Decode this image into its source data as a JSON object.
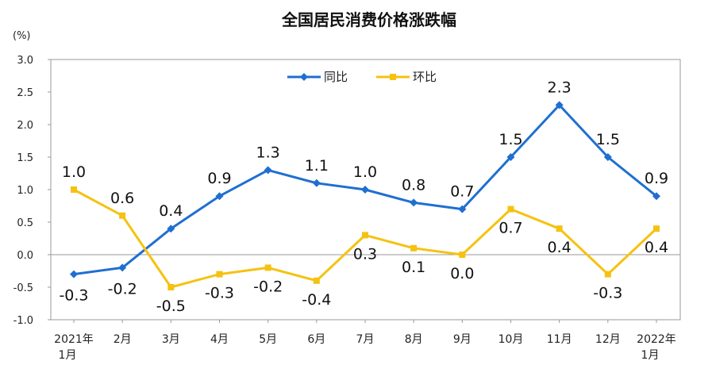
{
  "chart_data": {
    "type": "line",
    "title": "全国居民消费价格涨跌幅",
    "unit": "(%)",
    "categories": [
      [
        "2021年",
        "1月"
      ],
      [
        "2月"
      ],
      [
        "3月"
      ],
      [
        "4月"
      ],
      [
        "5月"
      ],
      [
        "6月"
      ],
      [
        "7月"
      ],
      [
        "8月"
      ],
      [
        "9月"
      ],
      [
        "10月"
      ],
      [
        "11月"
      ],
      [
        "12月"
      ],
      [
        "2022年",
        "1月"
      ]
    ],
    "series": [
      {
        "name": "同比",
        "color": "#1F6FD1",
        "values": [
          -0.3,
          -0.2,
          0.4,
          0.9,
          1.3,
          1.1,
          1.0,
          0.8,
          0.7,
          1.5,
          2.3,
          1.5,
          0.9
        ],
        "labels": [
          "-0.3",
          "-0.2",
          "0.4",
          "0.9",
          "1.3",
          "1.1",
          "1.0",
          "0.8",
          "0.7",
          "1.5",
          "2.3",
          "1.5",
          "0.9"
        ]
      },
      {
        "name": "环比",
        "color": "#F5C211",
        "values": [
          1.0,
          0.6,
          -0.5,
          -0.3,
          -0.2,
          -0.4,
          0.3,
          0.1,
          0.0,
          0.7,
          0.4,
          -0.3,
          0.4
        ],
        "labels": [
          "1.0",
          "0.6",
          "-0.5",
          "-0.3",
          "-0.2",
          "-0.4",
          "0.3",
          "0.1",
          "0.0",
          "0.7",
          "0.4",
          "-0.3",
          "0.4"
        ]
      }
    ],
    "ylim": [
      -1.0,
      3.0
    ],
    "yticks": [
      "3.0",
      "2.5",
      "2.0",
      "1.5",
      "1.0",
      "0.5",
      "0.0",
      "-0.5",
      "-1.0"
    ],
    "ytick_values": [
      3.0,
      2.5,
      2.0,
      1.5,
      1.0,
      0.5,
      0.0,
      -0.5,
      -1.0
    ],
    "legend_position": "top-center",
    "grid": false
  }
}
